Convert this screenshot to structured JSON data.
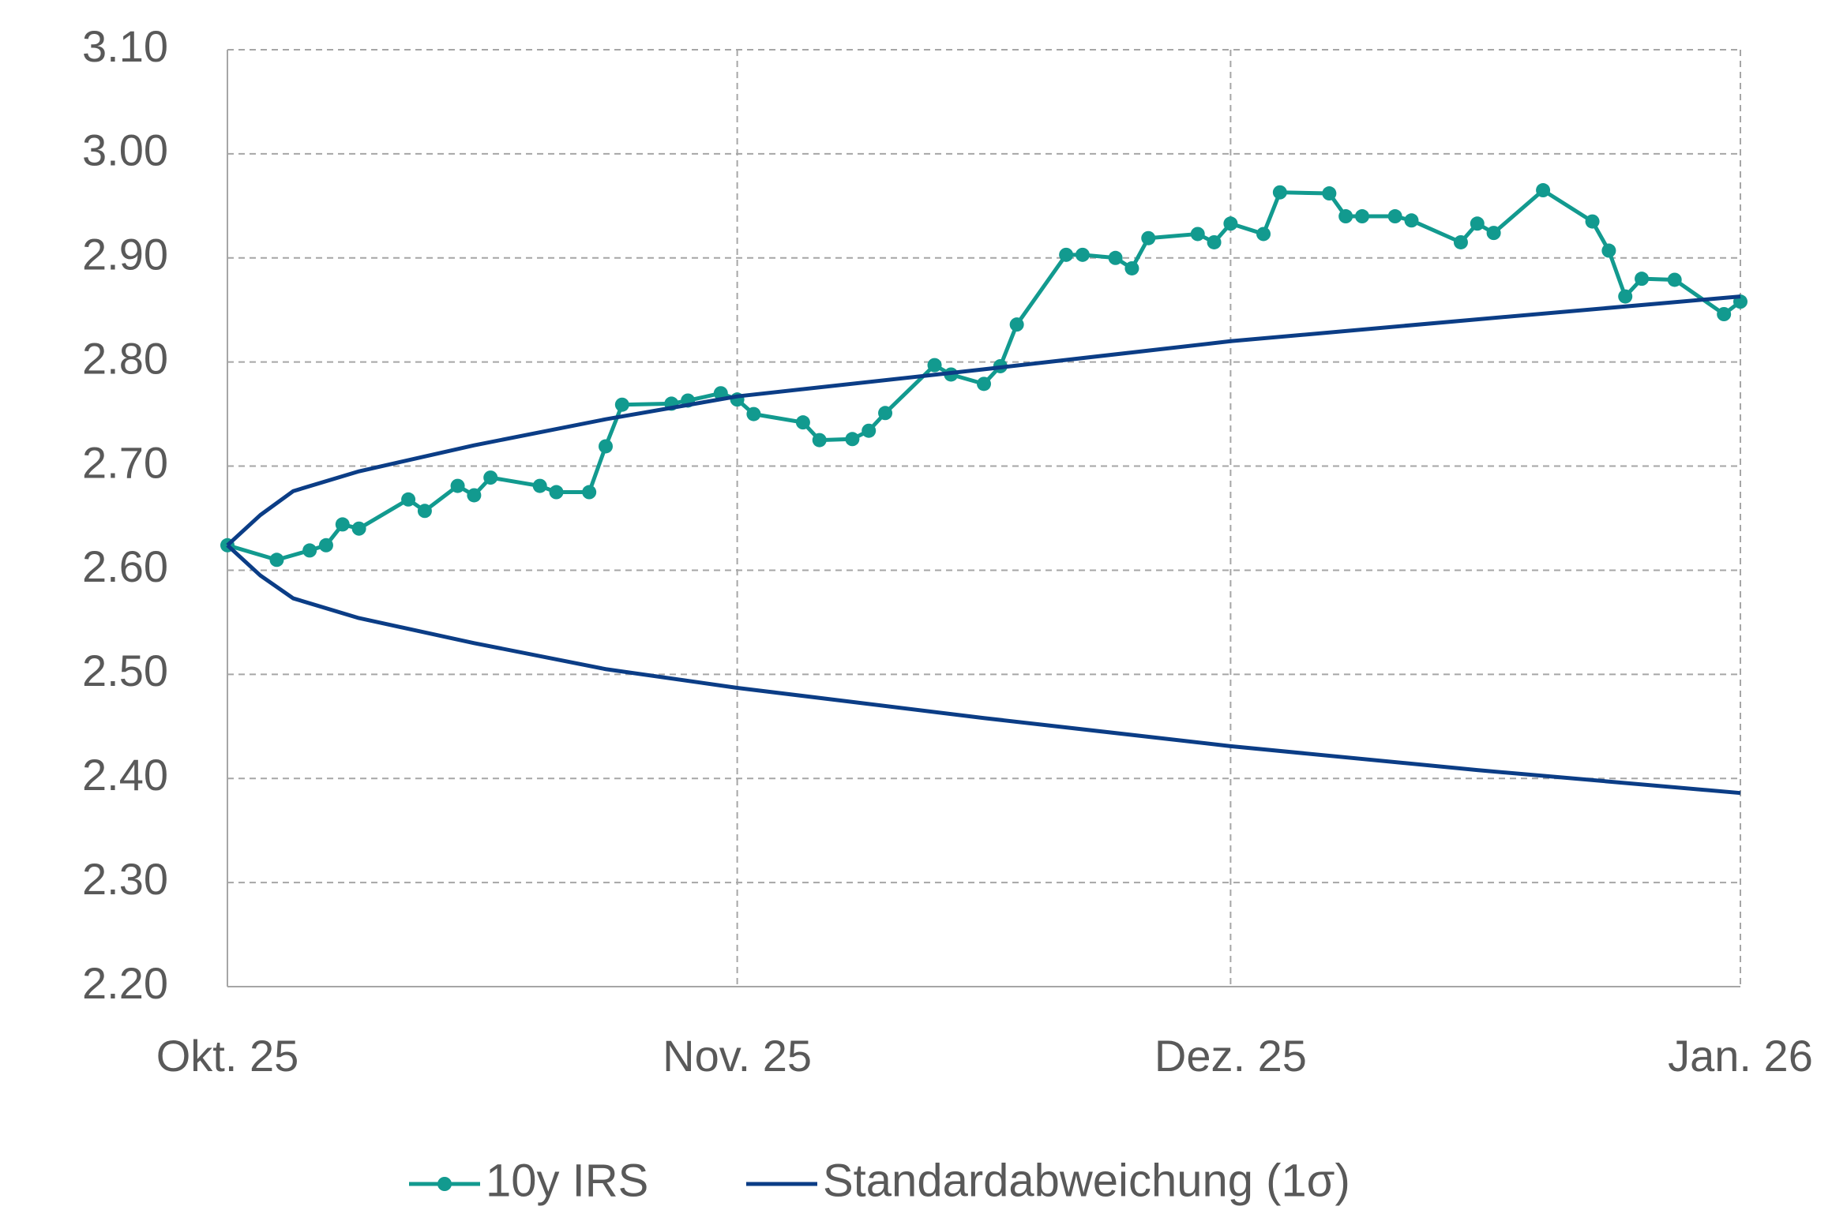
{
  "chart_data": {
    "type": "line",
    "xlim": [
      0,
      92
    ],
    "xticks": [
      {
        "value": 0,
        "label": "Okt. 25"
      },
      {
        "value": 31,
        "label": "Nov. 25"
      },
      {
        "value": 61,
        "label": "Dez. 25"
      },
      {
        "value": 92,
        "label": "Jan. 26"
      }
    ],
    "ylim": [
      2.2,
      3.1
    ],
    "yticks": [
      {
        "value": 2.2,
        "label": "2.20"
      },
      {
        "value": 2.3,
        "label": "2.30"
      },
      {
        "value": 2.4,
        "label": "2.40"
      },
      {
        "value": 2.5,
        "label": "2.50"
      },
      {
        "value": 2.6,
        "label": "2.60"
      },
      {
        "value": 2.7,
        "label": "2.70"
      },
      {
        "value": 2.8,
        "label": "2.80"
      },
      {
        "value": 2.9,
        "label": "2.90"
      },
      {
        "value": 3.0,
        "label": "3.00"
      },
      {
        "value": 3.1,
        "label": "3.10"
      }
    ],
    "grid": true,
    "legend": "bottom",
    "series": [
      {
        "name": "10y IRS",
        "color": "#129a8f",
        "markers": true,
        "x": [
          0,
          3,
          5,
          6,
          7,
          8,
          11,
          12,
          14,
          15,
          16,
          19,
          20,
          22,
          23,
          24,
          27,
          28,
          30,
          31,
          32,
          35,
          36,
          38,
          39,
          40,
          43,
          44,
          46,
          47,
          48,
          51,
          52,
          54,
          55,
          56,
          59,
          60,
          61,
          63,
          64,
          67,
          68,
          69,
          71,
          72,
          75,
          76,
          77,
          80,
          83,
          84,
          85,
          86,
          88,
          91,
          92
        ],
        "values": [
          2.624,
          2.61,
          2.619,
          2.624,
          2.644,
          2.64,
          2.668,
          2.657,
          2.681,
          2.672,
          2.689,
          2.681,
          2.675,
          2.675,
          2.719,
          2.759,
          2.76,
          2.763,
          2.77,
          2.764,
          2.75,
          2.742,
          2.725,
          2.726,
          2.734,
          2.751,
          2.797,
          2.788,
          2.779,
          2.796,
          2.836,
          2.903,
          2.903,
          2.9,
          2.89,
          2.919,
          2.923,
          2.915,
          2.933,
          2.923,
          2.963,
          2.962,
          2.94,
          2.94,
          2.94,
          2.936,
          2.915,
          2.933,
          2.924,
          2.965,
          2.935,
          2.907,
          2.863,
          2.88,
          2.879,
          2.846,
          2.858
        ]
      },
      {
        "name": "Standardabweichung (1σ)",
        "color": "#0b3d86",
        "markers": false,
        "x": [
          0,
          2,
          4,
          8,
          15,
          23,
          31,
          46,
          61,
          76,
          92
        ],
        "upper": [
          2.624,
          2.653,
          2.676,
          2.695,
          2.72,
          2.745,
          2.767,
          2.793,
          2.82,
          2.841,
          2.863
        ],
        "lower": [
          2.624,
          2.595,
          2.573,
          2.554,
          2.53,
          2.505,
          2.487,
          2.458,
          2.431,
          2.408,
          2.386
        ]
      }
    ]
  }
}
